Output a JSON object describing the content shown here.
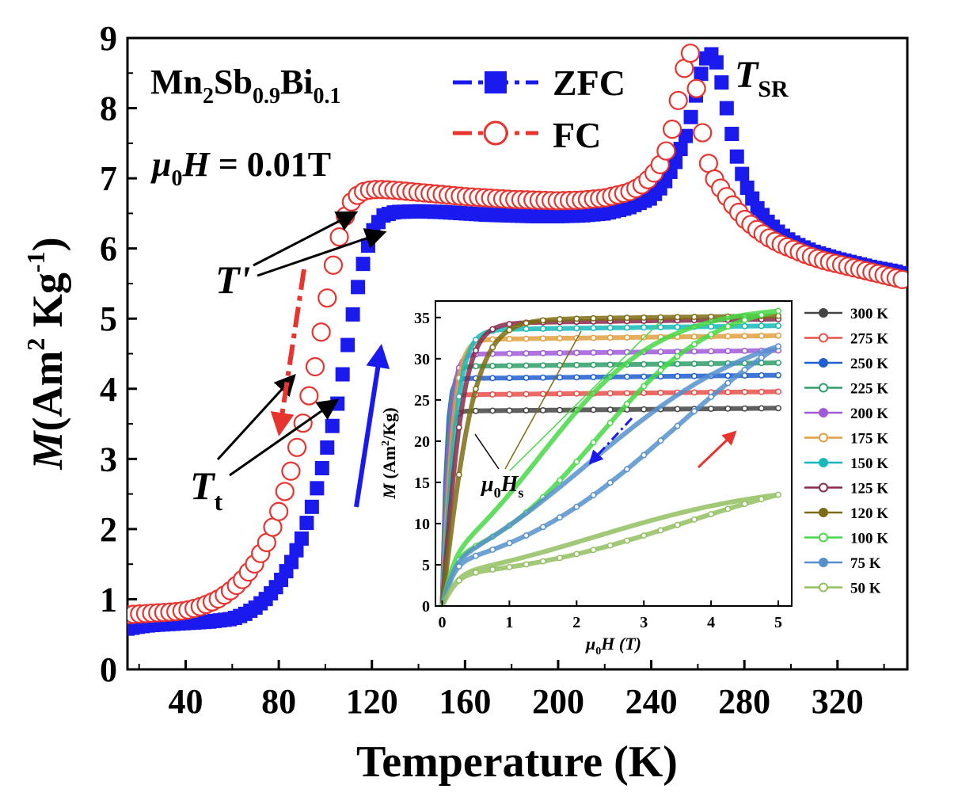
{
  "colors": {
    "zfc": "#1a1aee",
    "fc": "#e8342f",
    "axis": "#000000"
  },
  "chart_data": [
    {
      "type": "scatter",
      "role": "main",
      "xlabel": "Temperature (K)",
      "ylabel": {
        "pre": "M",
        "open": "(Am",
        "sup1": "2",
        "mid": " Kg",
        "sup2": "-1",
        "close": ")"
      },
      "xlim": [
        15,
        350
      ],
      "ylim": [
        0,
        9
      ],
      "xticks": [
        "40",
        "80",
        "120",
        "160",
        "200",
        "240",
        "280",
        "320"
      ],
      "xtick_values": [
        40,
        80,
        120,
        160,
        200,
        240,
        280,
        320
      ],
      "yticks": [
        "0",
        "1",
        "2",
        "3",
        "4",
        "5",
        "6",
        "7",
        "8",
        "9"
      ],
      "ytick_values": [
        0,
        1,
        2,
        3,
        4,
        5,
        6,
        7,
        8,
        9
      ],
      "legend": [
        {
          "name": "ZFC",
          "marker": "filled-square",
          "color": "#1a1aee"
        },
        {
          "name": "FC",
          "marker": "open-circle",
          "color": "#e8342f"
        }
      ],
      "series": [
        {
          "name": "ZFC",
          "x": [
            15,
            20,
            25,
            30,
            35,
            40,
            45,
            50,
            55,
            60,
            65,
            70,
            75,
            80,
            85,
            90,
            95,
            100,
            105,
            110,
            113,
            117,
            121,
            125,
            130,
            140,
            150,
            160,
            170,
            180,
            190,
            200,
            210,
            220,
            230,
            240,
            245,
            250,
            255,
            258,
            261,
            264,
            267,
            270,
            273,
            276,
            280,
            285,
            290,
            295,
            300,
            305,
            310,
            315,
            320,
            325,
            330,
            335,
            340,
            345,
            350
          ],
          "y": [
            0.58,
            0.61,
            0.63,
            0.64,
            0.65,
            0.66,
            0.67,
            0.68,
            0.7,
            0.72,
            0.78,
            0.88,
            1.02,
            1.22,
            1.5,
            1.88,
            2.4,
            3.05,
            3.75,
            4.7,
            5.3,
            5.9,
            6.3,
            6.47,
            6.52,
            6.53,
            6.52,
            6.5,
            6.48,
            6.47,
            6.46,
            6.46,
            6.47,
            6.5,
            6.58,
            6.72,
            6.9,
            7.2,
            7.62,
            8.0,
            8.45,
            8.75,
            8.78,
            8.4,
            7.9,
            7.4,
            6.95,
            6.6,
            6.38,
            6.22,
            6.1,
            6.02,
            5.95,
            5.9,
            5.85,
            5.81,
            5.77,
            5.73,
            5.7,
            5.67,
            5.62
          ]
        },
        {
          "name": "FC",
          "x": [
            15,
            20,
            25,
            30,
            35,
            40,
            45,
            50,
            55,
            60,
            65,
            70,
            75,
            80,
            85,
            90,
            95,
            100,
            105,
            110,
            115,
            120,
            125,
            130,
            140,
            150,
            160,
            170,
            180,
            190,
            200,
            210,
            220,
            230,
            235,
            240,
            245,
            248,
            251,
            254,
            257,
            260,
            263,
            266,
            270,
            275,
            280,
            285,
            290,
            295,
            300,
            305,
            310,
            315,
            320,
            325,
            330,
            335,
            340,
            345,
            350
          ],
          "y": [
            0.78,
            0.79,
            0.8,
            0.81,
            0.82,
            0.84,
            0.88,
            0.94,
            1.02,
            1.14,
            1.3,
            1.52,
            1.82,
            2.25,
            2.8,
            3.45,
            4.2,
            5.15,
            6.05,
            6.62,
            6.8,
            6.84,
            6.84,
            6.83,
            6.8,
            6.77,
            6.74,
            6.72,
            6.7,
            6.69,
            6.68,
            6.69,
            6.72,
            6.8,
            6.88,
            7.02,
            7.25,
            7.55,
            8.0,
            8.55,
            8.8,
            8.15,
            7.4,
            7.05,
            6.85,
            6.62,
            6.42,
            6.28,
            6.16,
            6.07,
            6.0,
            5.93,
            5.87,
            5.82,
            5.78,
            5.74,
            5.7,
            5.66,
            5.62,
            5.58,
            5.54
          ]
        }
      ],
      "annotations": {
        "sample": {
          "main": "Mn",
          "s1": "2",
          "el2": "Sb",
          "s2": "0.9",
          "el3": "Bi",
          "s3": "0.1"
        },
        "field": {
          "mu": "μ",
          "sub": "0",
          "h": "H",
          "rest": " = 0.01T"
        },
        "tsr": {
          "main": "T",
          "sub": "SR"
        },
        "tprime": "T'",
        "tt": {
          "main": "T",
          "sub": "t"
        }
      }
    },
    {
      "type": "line",
      "role": "inset",
      "xlabel": {
        "mu": "μ",
        "sub": "0",
        "h": "H",
        "rest": " (T)"
      },
      "ylabel": {
        "pre": "M",
        "open": " (Am",
        "sup": "2",
        "close": "/Kg)"
      },
      "xlim": [
        -0.1,
        5.2
      ],
      "ylim": [
        0,
        37
      ],
      "xticks": [
        "0",
        "1",
        "2",
        "3",
        "4",
        "5"
      ],
      "xtick_values": [
        0,
        1,
        2,
        3,
        4,
        5
      ],
      "yticks": [
        "0",
        "5",
        "10",
        "15",
        "20",
        "25",
        "30",
        "35"
      ],
      "ytick_values": [
        0,
        5,
        10,
        15,
        20,
        25,
        30,
        35
      ],
      "annotation": {
        "mu": "μ",
        "sub": "0",
        "h": "H",
        "sub2": "s"
      },
      "series": [
        {
          "name": "300 K",
          "color": "#444444",
          "marker": "square",
          "msat": 24.0,
          "hs": 0.35,
          "hyst": false
        },
        {
          "name": "275 K",
          "color": "#e8504a",
          "marker": "open-circle",
          "msat": 26.0,
          "hs": 0.3,
          "hyst": false
        },
        {
          "name": "250 K",
          "color": "#1f5fd0",
          "marker": "triangle",
          "msat": 28.0,
          "hs": 0.3,
          "hyst": false
        },
        {
          "name": "225 K",
          "color": "#2e9e6a",
          "marker": "open-triangle-down",
          "msat": 29.5,
          "hs": 0.4,
          "hyst": false
        },
        {
          "name": "200 K",
          "color": "#a05ad8",
          "marker": "diamond",
          "msat": 31.0,
          "hs": 0.5,
          "hyst": false
        },
        {
          "name": "175 K",
          "color": "#e0a040",
          "marker": "open-triangle-left",
          "msat": 32.8,
          "hs": 0.7,
          "hyst": false
        },
        {
          "name": "150 K",
          "color": "#18b8b8",
          "marker": "triangle-right",
          "msat": 34.0,
          "hs": 0.9,
          "hyst": false
        },
        {
          "name": "125 K",
          "color": "#8a2a4a",
          "marker": "open-circle",
          "msat": 34.8,
          "hs": 1.2,
          "hyst": false
        },
        {
          "name": "120 K",
          "color": "#7d6c14",
          "marker": "star",
          "msat": 35.2,
          "hs": 1.8,
          "hyst": false
        },
        {
          "name": "100 K",
          "color": "#48d848",
          "marker": "open-hexagon",
          "msat": 35.8,
          "hs": 3.2,
          "hyst": true
        },
        {
          "name": "75   K",
          "color": "#5590cc",
          "marker": "circle",
          "msat": 31.5,
          "hs": 4.8,
          "hyst": true
        },
        {
          "name": "50   K",
          "color": "#90c060",
          "marker": "open-star",
          "msat": 13.5,
          "hs": 5.0,
          "hyst": true
        }
      ]
    }
  ]
}
